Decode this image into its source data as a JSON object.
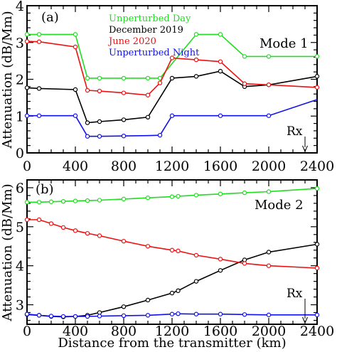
{
  "chart_data": [
    {
      "type": "line",
      "panel_label": "(a)",
      "mode_label": "Mode 1",
      "ylabel": "Attenuation (dB/Mm)",
      "xlabel": "",
      "xlim": [
        0,
        2400
      ],
      "ylim": [
        0,
        4
      ],
      "xticks": [
        0,
        400,
        800,
        1200,
        1600,
        2000,
        2400
      ],
      "yticks": [
        0,
        1,
        2,
        3,
        4
      ],
      "marker_label": "Rx",
      "marker_x": 2300,
      "legend": [
        {
          "name": "Unperturbed Day",
          "color": "#22dd22"
        },
        {
          "name": "December 2019",
          "color": "#000000"
        },
        {
          "name": "June 2020",
          "color": "#ee1111"
        },
        {
          "name": "Unperturbed Night",
          "color": "#1111ee"
        }
      ],
      "series": [
        {
          "name": "Unperturbed Day",
          "color": "#22dd22",
          "x": [
            0,
            100,
            400,
            500,
            600,
            800,
            1000,
            1100,
            1400,
            1600,
            1800,
            2000,
            2400
          ],
          "y": [
            3.22,
            3.22,
            3.22,
            2.03,
            2.03,
            2.03,
            2.03,
            2.03,
            3.22,
            3.22,
            2.62,
            2.62,
            2.62
          ]
        },
        {
          "name": "December 2019",
          "color": "#000000",
          "x": [
            0,
            100,
            400,
            500,
            600,
            800,
            1000,
            1200,
            1400,
            1600,
            1800,
            2000,
            2400
          ],
          "y": [
            1.77,
            1.75,
            1.72,
            0.82,
            0.85,
            0.9,
            0.97,
            2.03,
            2.08,
            2.22,
            1.8,
            1.85,
            2.08
          ]
        },
        {
          "name": "June 2020",
          "color": "#ee1111",
          "x": [
            0,
            100,
            400,
            500,
            600,
            800,
            1000,
            1100,
            1200,
            1400,
            1600,
            1800,
            2000,
            2400
          ],
          "y": [
            3.03,
            3.02,
            2.88,
            1.7,
            1.68,
            1.63,
            1.57,
            1.9,
            2.58,
            2.53,
            2.48,
            1.88,
            1.85,
            1.78
          ]
        },
        {
          "name": "Unperturbed Night",
          "color": "#1111ee",
          "x": [
            0,
            100,
            400,
            500,
            600,
            800,
            1000,
            1100,
            1200,
            1600,
            1800,
            2000,
            2400
          ],
          "y": [
            1.01,
            1.01,
            1.01,
            0.45,
            0.45,
            0.46,
            0.47,
            0.48,
            1.01,
            1.01,
            1.01,
            1.01,
            1.45
          ],
          "markers_x": [
            0,
            100,
            400,
            500,
            600,
            800,
            1100,
            1200,
            1600,
            2000
          ]
        }
      ]
    },
    {
      "type": "line",
      "panel_label": "(b)",
      "mode_label": "Mode 2",
      "ylabel": "Attenuation (dB/Mm)",
      "xlabel": "Distance from the transmitter (km)",
      "xlim": [
        0,
        2400
      ],
      "ylim": [
        2.5,
        6.2
      ],
      "xticks": [
        0,
        400,
        800,
        1200,
        1600,
        2000,
        2400
      ],
      "yticks": [
        3,
        4,
        5,
        6
      ],
      "marker_label": "Rx",
      "marker_x": 2300,
      "series": [
        {
          "name": "Unperturbed Day",
          "color": "#22dd22",
          "x": [
            0,
            100,
            200,
            300,
            400,
            500,
            600,
            800,
            1000,
            1200,
            1250,
            1400,
            1600,
            1800,
            2000,
            2400
          ],
          "y": [
            5.63,
            5.63,
            5.64,
            5.65,
            5.66,
            5.67,
            5.68,
            5.71,
            5.74,
            5.77,
            5.78,
            5.81,
            5.84,
            5.87,
            5.9,
            5.98
          ]
        },
        {
          "name": "December 2019",
          "color": "#000000",
          "x": [
            0,
            100,
            200,
            300,
            400,
            500,
            600,
            800,
            1000,
            1200,
            1250,
            1400,
            1600,
            1800,
            2000,
            2400
          ],
          "y": [
            2.75,
            2.73,
            2.7,
            2.69,
            2.7,
            2.73,
            2.8,
            2.95,
            3.12,
            3.3,
            3.36,
            3.6,
            3.88,
            4.15,
            4.35,
            4.55
          ]
        },
        {
          "name": "June 2020",
          "color": "#ee1111",
          "x": [
            0,
            100,
            200,
            300,
            400,
            500,
            600,
            800,
            1000,
            1200,
            1250,
            1400,
            1600,
            1800,
            2000,
            2400
          ],
          "y": [
            5.18,
            5.18,
            5.08,
            4.98,
            4.9,
            4.83,
            4.77,
            4.63,
            4.5,
            4.4,
            4.38,
            4.27,
            4.17,
            4.06,
            4.0,
            3.94
          ]
        },
        {
          "name": "Unperturbed Night",
          "color": "#1111ee",
          "x": [
            0,
            100,
            200,
            300,
            400,
            500,
            600,
            800,
            1000,
            1200,
            1250,
            1400,
            1600,
            1800,
            2000,
            2400
          ],
          "y": [
            2.76,
            2.73,
            2.71,
            2.7,
            2.7,
            2.7,
            2.71,
            2.72,
            2.73,
            2.76,
            2.77,
            2.76,
            2.76,
            2.75,
            2.74,
            2.74
          ]
        }
      ]
    }
  ]
}
